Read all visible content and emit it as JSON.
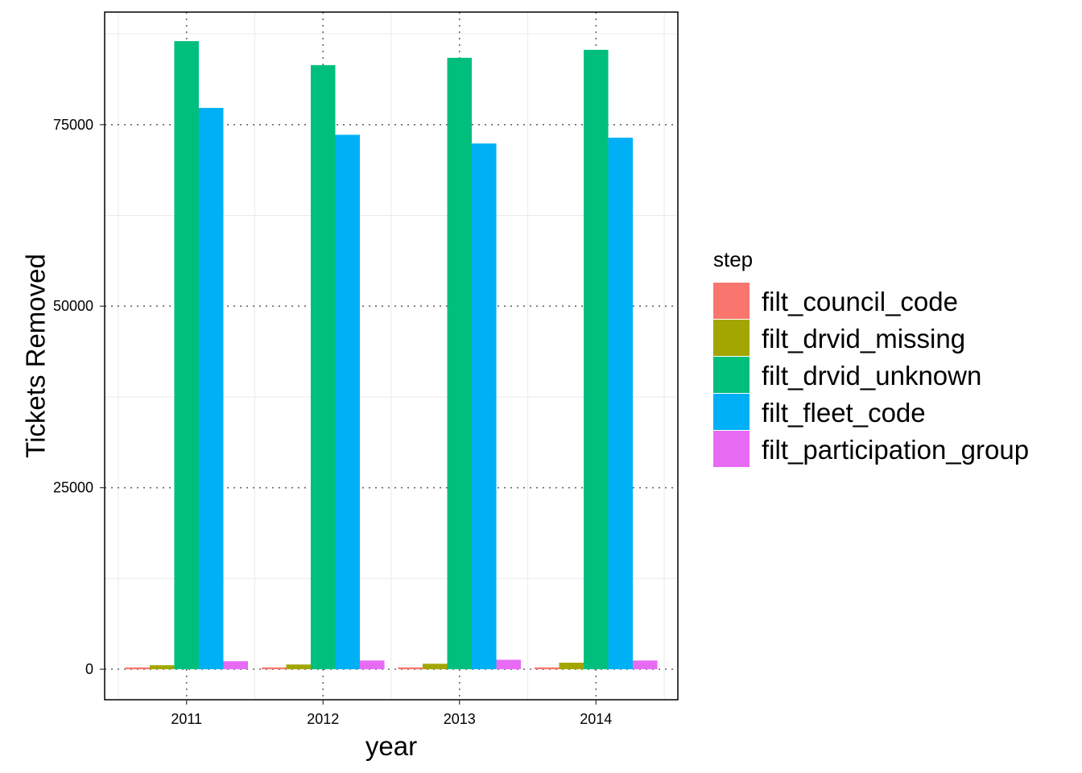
{
  "chart_data": {
    "type": "bar",
    "title": "",
    "xlabel": "year",
    "ylabel": "Tickets Removed",
    "categories": [
      "2011",
      "2012",
      "2013",
      "2014"
    ],
    "ylim": [
      -4200,
      90500
    ],
    "yticks": [
      0,
      25000,
      50000,
      75000
    ],
    "ytick_labels": [
      "0",
      "25000",
      "50000",
      "75000"
    ],
    "grid": true,
    "legend": {
      "title": "step",
      "placement": "right"
    },
    "series": [
      {
        "name": "filt_council_code",
        "color": "#F8766D",
        "values": [
          250,
          250,
          250,
          250
        ]
      },
      {
        "name": "filt_drvid_missing",
        "color": "#A3A500",
        "values": [
          550,
          650,
          750,
          900
        ]
      },
      {
        "name": "filt_drvid_unknown",
        "color": "#00BF7D",
        "values": [
          86500,
          83200,
          84200,
          85300
        ]
      },
      {
        "name": "filt_fleet_code",
        "color": "#00B0F6",
        "values": [
          77300,
          73600,
          72400,
          73200
        ]
      },
      {
        "name": "filt_participation_group",
        "color": "#E76BF3",
        "values": [
          1100,
          1200,
          1300,
          1200
        ]
      }
    ]
  }
}
